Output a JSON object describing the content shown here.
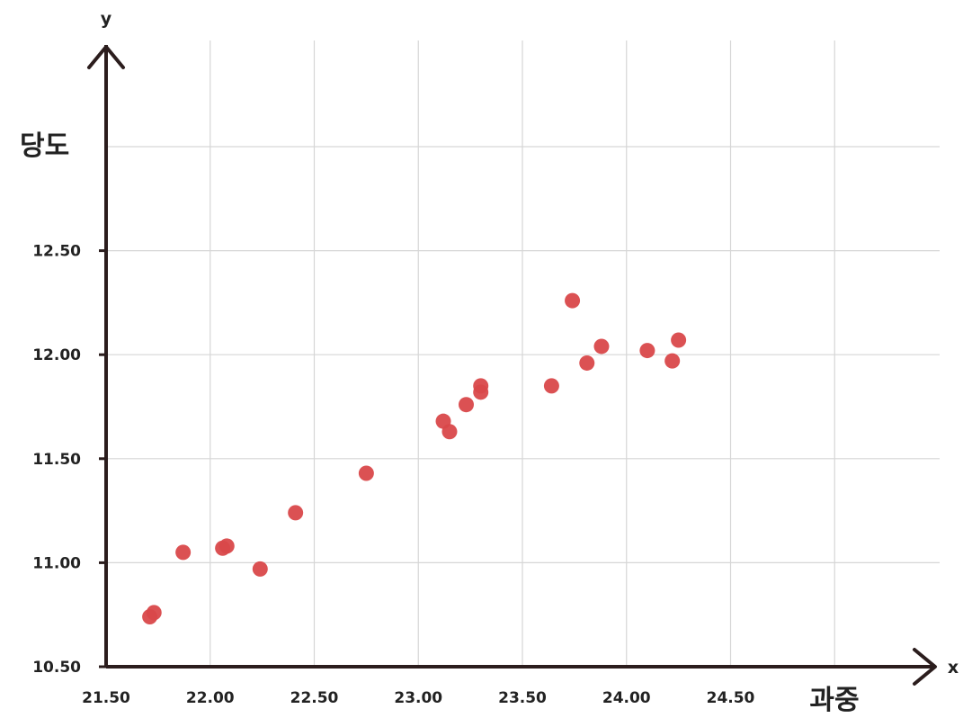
{
  "chart_data": {
    "type": "scatter",
    "xlabel": "과중",
    "ylabel": "당도",
    "x_axis_letter": "x",
    "y_axis_letter": "y",
    "xlim": [
      21.5,
      25.0
    ],
    "ylim": [
      10.5,
      13.0
    ],
    "xticks": [
      21.5,
      22.0,
      22.5,
      23.0,
      23.5,
      24.0,
      24.5
    ],
    "yticks": [
      10.5,
      11.0,
      11.5,
      12.0,
      12.5
    ],
    "xtick_labels": [
      "21.50",
      "22.00",
      "22.50",
      "23.00",
      "23.50",
      "24.00",
      "24.50"
    ],
    "ytick_labels": [
      "10.50",
      "11.00",
      "11.50",
      "12.00",
      "12.50"
    ],
    "grid": true,
    "point_color": "#d9484a",
    "points": [
      {
        "x": 21.71,
        "y": 10.74
      },
      {
        "x": 21.73,
        "y": 10.76
      },
      {
        "x": 21.87,
        "y": 11.05
      },
      {
        "x": 22.06,
        "y": 11.07
      },
      {
        "x": 22.08,
        "y": 11.08
      },
      {
        "x": 22.24,
        "y": 10.97
      },
      {
        "x": 22.41,
        "y": 11.24
      },
      {
        "x": 22.75,
        "y": 11.43
      },
      {
        "x": 23.12,
        "y": 11.68
      },
      {
        "x": 23.15,
        "y": 11.63
      },
      {
        "x": 23.23,
        "y": 11.76
      },
      {
        "x": 23.3,
        "y": 11.82
      },
      {
        "x": 23.3,
        "y": 11.85
      },
      {
        "x": 23.64,
        "y": 11.85
      },
      {
        "x": 23.74,
        "y": 12.26
      },
      {
        "x": 23.81,
        "y": 11.96
      },
      {
        "x": 23.88,
        "y": 12.04
      },
      {
        "x": 24.1,
        "y": 12.02
      },
      {
        "x": 24.22,
        "y": 11.97
      },
      {
        "x": 24.25,
        "y": 12.07
      }
    ]
  }
}
